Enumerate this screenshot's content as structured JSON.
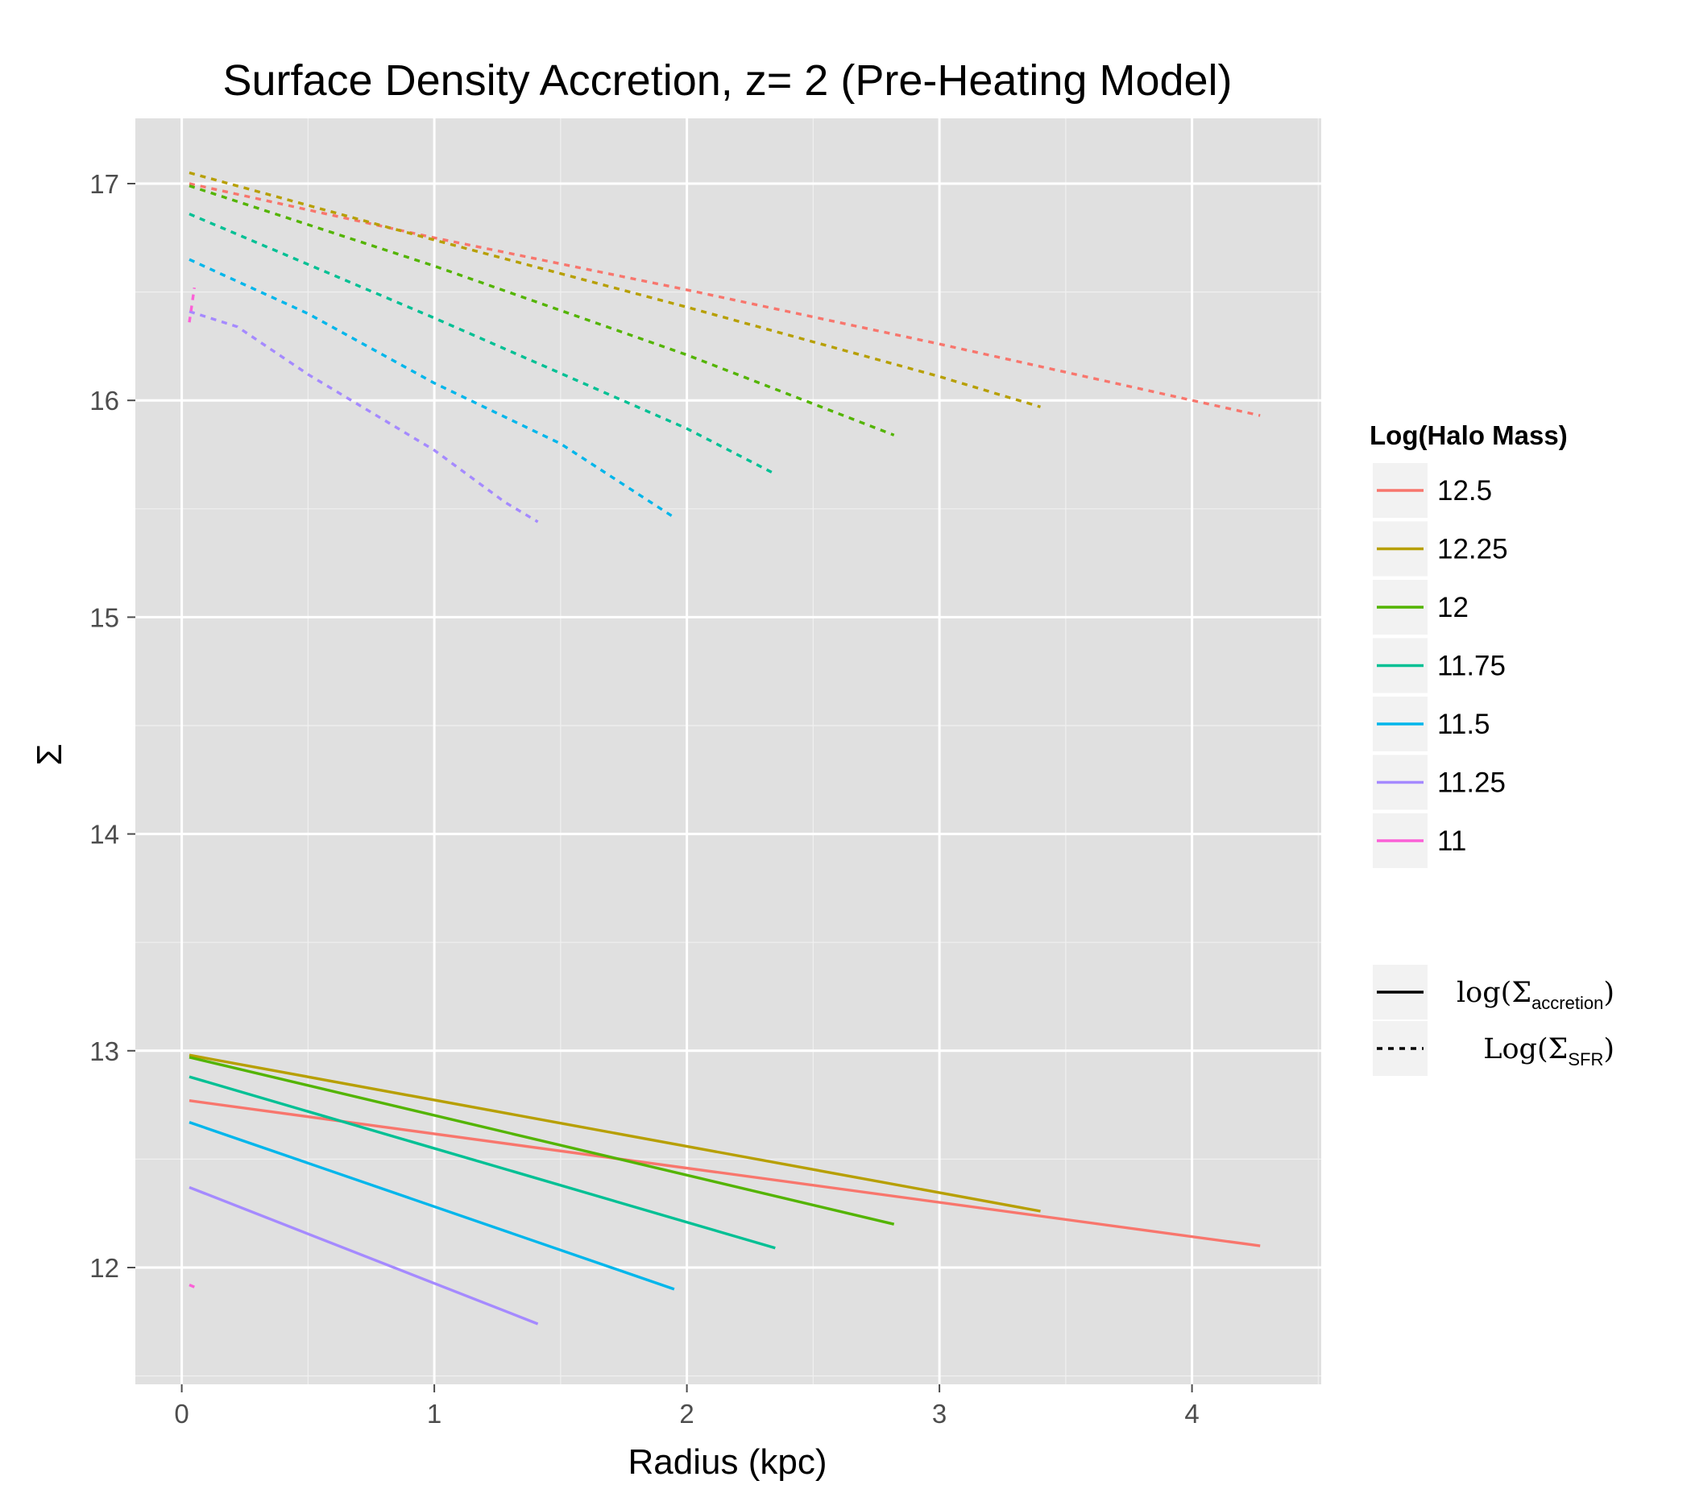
{
  "chart_data": {
    "type": "line",
    "title": "Surface Density Accretion, z= 2 (Pre-Heating Model)",
    "xlabel": "Radius (kpc)",
    "ylabel": "Σ",
    "xlim": [
      -0.18,
      4.5
    ],
    "ylim": [
      11.5,
      17.3
    ],
    "x_ticks": [
      0,
      1,
      2,
      3,
      4
    ],
    "y_ticks": [
      12,
      13,
      14,
      15,
      16,
      17
    ],
    "grid": true,
    "legend_color": {
      "title": "Log(Halo Mass)",
      "placement": "right",
      "entries": [
        {
          "label": "12.5",
          "color": "#f8766d"
        },
        {
          "label": "12.25",
          "color": "#b79f00"
        },
        {
          "label": "12",
          "color": "#53b400"
        },
        {
          "label": "11.75",
          "color": "#00c094"
        },
        {
          "label": "11.5",
          "color": "#00b6eb"
        },
        {
          "label": "11.25",
          "color": "#a58aff"
        },
        {
          "label": "11",
          "color": "#fb61d7"
        }
      ]
    },
    "legend_linetype": {
      "placement": "right",
      "entries": [
        {
          "style": "solid",
          "text": "log(",
          "symbol": "Σ",
          "sub": "accretion",
          "close": ")"
        },
        {
          "style": "dashed",
          "text": "Log(",
          "symbol": "Σ",
          "sub": "SFR",
          "close": ")"
        }
      ]
    },
    "series": [
      {
        "name": "12.5",
        "color": "#f8766d",
        "style": "solid",
        "points": [
          [
            0.03,
            12.77
          ],
          [
            4.27,
            12.1
          ]
        ]
      },
      {
        "name": "12.25",
        "color": "#b79f00",
        "style": "solid",
        "points": [
          [
            0.03,
            12.98
          ],
          [
            3.4,
            12.26
          ]
        ]
      },
      {
        "name": "12",
        "color": "#53b400",
        "style": "solid",
        "points": [
          [
            0.03,
            12.97
          ],
          [
            2.82,
            12.2
          ]
        ]
      },
      {
        "name": "11.75",
        "color": "#00c094",
        "style": "solid",
        "points": [
          [
            0.03,
            12.88
          ],
          [
            2.35,
            12.09
          ]
        ]
      },
      {
        "name": "11.5",
        "color": "#00b6eb",
        "style": "solid",
        "points": [
          [
            0.03,
            12.67
          ],
          [
            1.95,
            11.9
          ]
        ]
      },
      {
        "name": "11.25",
        "color": "#a58aff",
        "style": "solid",
        "points": [
          [
            0.03,
            12.37
          ],
          [
            1.41,
            11.74
          ]
        ]
      },
      {
        "name": "11",
        "color": "#fb61d7",
        "style": "solid",
        "points": [
          [
            0.03,
            11.92
          ],
          [
            0.05,
            11.91
          ]
        ]
      },
      {
        "name": "12.5",
        "color": "#f8766d",
        "style": "dashed",
        "points": [
          [
            0.03,
            17.0
          ],
          [
            1.0,
            16.75
          ],
          [
            2.0,
            16.51
          ],
          [
            3.0,
            16.26
          ],
          [
            4.27,
            15.93
          ]
        ]
      },
      {
        "name": "12.25",
        "color": "#b79f00",
        "style": "dashed",
        "points": [
          [
            0.03,
            17.05
          ],
          [
            1.0,
            16.74
          ],
          [
            2.0,
            16.43
          ],
          [
            3.0,
            16.11
          ],
          [
            3.4,
            15.97
          ]
        ]
      },
      {
        "name": "12",
        "color": "#53b400",
        "style": "dashed",
        "points": [
          [
            0.03,
            16.99
          ],
          [
            1.0,
            16.62
          ],
          [
            2.0,
            16.21
          ],
          [
            2.82,
            15.84
          ]
        ]
      },
      {
        "name": "11.75",
        "color": "#00c094",
        "style": "dashed",
        "points": [
          [
            0.03,
            16.86
          ],
          [
            1.0,
            16.38
          ],
          [
            2.0,
            15.87
          ],
          [
            2.35,
            15.66
          ]
        ]
      },
      {
        "name": "11.5",
        "color": "#00b6eb",
        "style": "dashed",
        "points": [
          [
            0.03,
            16.65
          ],
          [
            0.5,
            16.4
          ],
          [
            1.0,
            16.08
          ],
          [
            1.5,
            15.8
          ],
          [
            1.95,
            15.46
          ]
        ]
      },
      {
        "name": "11.25",
        "color": "#a58aff",
        "style": "dashed",
        "points": [
          [
            0.03,
            16.41
          ],
          [
            0.22,
            16.34
          ],
          [
            0.5,
            16.12
          ],
          [
            1.0,
            15.77
          ],
          [
            1.28,
            15.53
          ],
          [
            1.41,
            15.44
          ]
        ]
      },
      {
        "name": "11",
        "color": "#fb61d7",
        "style": "dashed",
        "points": [
          [
            0.03,
            16.36
          ],
          [
            0.05,
            16.52
          ]
        ]
      }
    ]
  }
}
